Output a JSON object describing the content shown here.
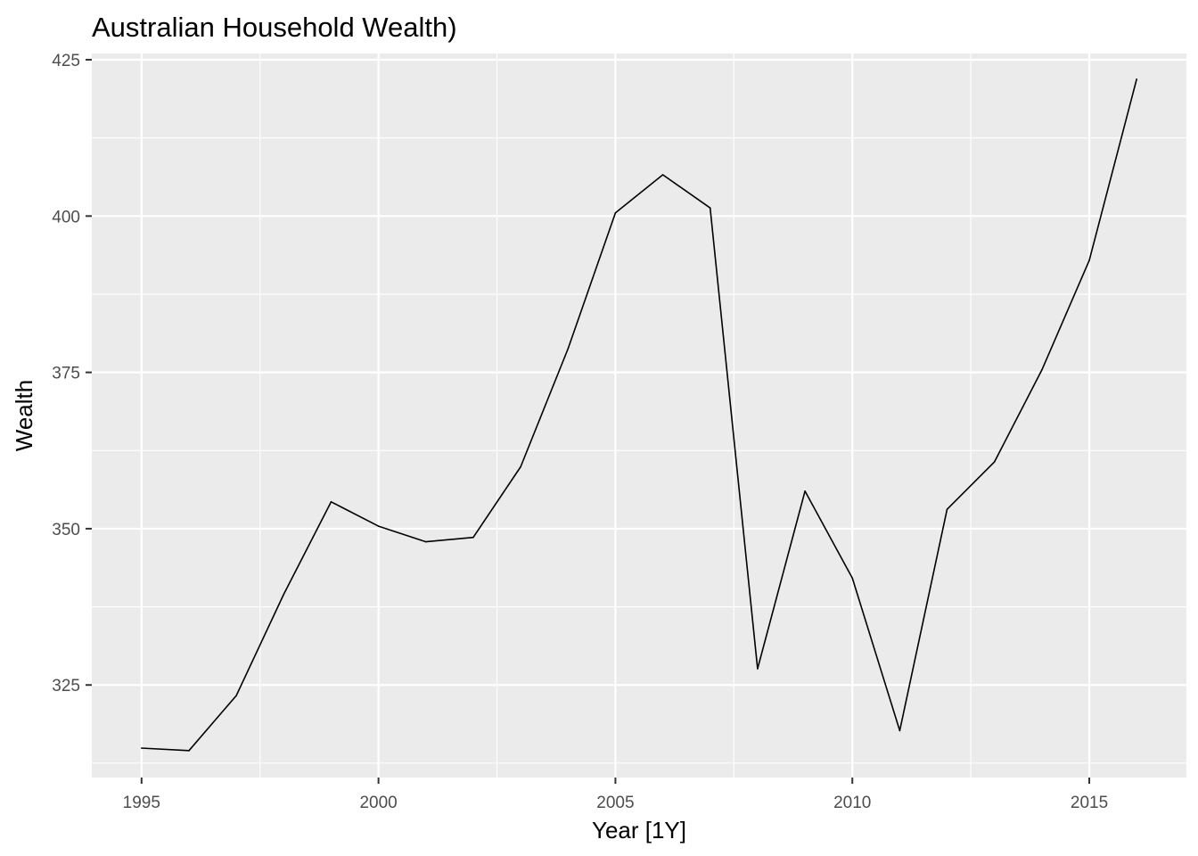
{
  "chart_data": {
    "type": "line",
    "title": "Australian Household Wealth)",
    "xlabel": "Year [1Y]",
    "ylabel": "Wealth",
    "xlim": [
      1993.95,
      2017.05
    ],
    "ylim": [
      310.2,
      426.0
    ],
    "xticks": [
      1995,
      2000,
      2005,
      2010,
      2015
    ],
    "yticks": [
      325,
      350,
      375,
      400,
      425
    ],
    "grid": true,
    "legend": "none",
    "series": [
      {
        "x": [
          1995,
          1996,
          1997,
          1998,
          1999,
          2000,
          2001,
          2002,
          2003,
          2004,
          2005,
          2006,
          2007,
          2008,
          2009,
          2010,
          2011,
          2012,
          2013,
          2014,
          2015,
          2016
        ],
        "values": [
          314.9,
          314.5,
          323.3,
          339.5,
          354.3,
          350.4,
          347.9,
          348.6,
          359.9,
          378.8,
          400.5,
          406.6,
          401.3,
          327.6,
          356.0,
          342.1,
          317.7,
          353.1,
          360.7,
          375.4,
          392.9,
          421.9
        ]
      }
    ],
    "colors": {
      "panel": "#EBEBEB",
      "grid": "#FFFFFF",
      "line": "#000000",
      "tick_text": "#4D4D4D"
    }
  }
}
